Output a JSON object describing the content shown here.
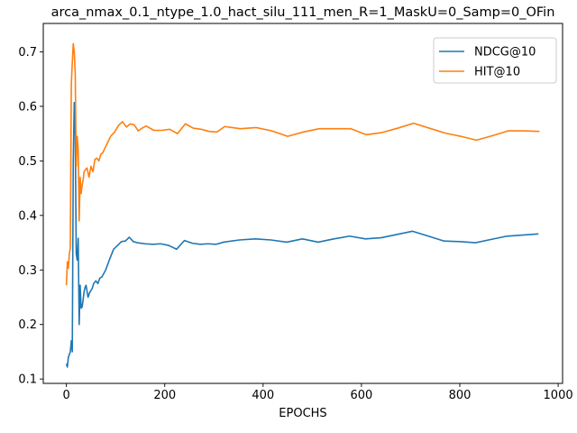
{
  "chart_data": {
    "type": "line",
    "title": "arca_nmax_0.1_ntype_1.0_hact_silu_111_men_R=1_MaskU=0_Samp=0_OFin",
    "xlabel": "EPOCHS",
    "ylabel": "",
    "xlim": [
      -47,
      1009
    ],
    "ylim": [
      0.092,
      0.752
    ],
    "xticks": [
      0,
      200,
      400,
      600,
      800,
      1000
    ],
    "yticks": [
      0.1,
      0.2,
      0.3,
      0.4,
      0.5,
      0.6,
      0.7
    ],
    "grid": false,
    "legend_position": "upper right",
    "series": [
      {
        "name": "NDCG@10",
        "color": "#1f77b4",
        "points": [
          [
            0,
            0.128
          ],
          [
            2,
            0.122
          ],
          [
            4,
            0.14
          ],
          [
            6,
            0.145
          ],
          [
            8,
            0.15
          ],
          [
            10,
            0.17
          ],
          [
            12,
            0.15
          ],
          [
            14,
            0.5
          ],
          [
            16,
            0.607
          ],
          [
            18,
            0.55
          ],
          [
            20,
            0.33
          ],
          [
            22,
            0.318
          ],
          [
            24,
            0.358
          ],
          [
            26,
            0.2
          ],
          [
            28,
            0.272
          ],
          [
            30,
            0.23
          ],
          [
            32,
            0.232
          ],
          [
            34,
            0.245
          ],
          [
            36,
            0.26
          ],
          [
            38,
            0.268
          ],
          [
            40,
            0.272
          ],
          [
            44,
            0.25
          ],
          [
            48,
            0.26
          ],
          [
            52,
            0.265
          ],
          [
            56,
            0.276
          ],
          [
            60,
            0.28
          ],
          [
            64,
            0.275
          ],
          [
            68,
            0.285
          ],
          [
            72,
            0.287
          ],
          [
            80,
            0.3
          ],
          [
            88,
            0.32
          ],
          [
            96,
            0.338
          ],
          [
            104,
            0.345
          ],
          [
            112,
            0.352
          ],
          [
            120,
            0.353
          ],
          [
            128,
            0.36
          ],
          [
            136,
            0.352
          ],
          [
            144,
            0.35
          ],
          [
            160,
            0.348
          ],
          [
            176,
            0.347
          ],
          [
            192,
            0.348
          ],
          [
            208,
            0.345
          ],
          [
            224,
            0.338
          ],
          [
            240,
            0.354
          ],
          [
            256,
            0.349
          ],
          [
            272,
            0.347
          ],
          [
            288,
            0.348
          ],
          [
            304,
            0.347
          ],
          [
            320,
            0.351
          ],
          [
            352,
            0.355
          ],
          [
            384,
            0.357
          ],
          [
            416,
            0.355
          ],
          [
            448,
            0.351
          ],
          [
            480,
            0.357
          ],
          [
            512,
            0.351
          ],
          [
            544,
            0.357
          ],
          [
            576,
            0.362
          ],
          [
            608,
            0.357
          ],
          [
            640,
            0.359
          ],
          [
            672,
            0.365
          ],
          [
            704,
            0.371
          ],
          [
            736,
            0.362
          ],
          [
            768,
            0.353
          ],
          [
            800,
            0.352
          ],
          [
            832,
            0.35
          ],
          [
            864,
            0.356
          ],
          [
            896,
            0.362
          ],
          [
            928,
            0.364
          ],
          [
            960,
            0.366
          ]
        ]
      },
      {
        "name": "HIT@10",
        "color": "#ff7f0e",
        "points": [
          [
            0,
            0.272
          ],
          [
            2,
            0.315
          ],
          [
            4,
            0.303
          ],
          [
            6,
            0.33
          ],
          [
            8,
            0.34
          ],
          [
            10,
            0.64
          ],
          [
            12,
            0.68
          ],
          [
            14,
            0.715
          ],
          [
            16,
            0.7
          ],
          [
            18,
            0.66
          ],
          [
            20,
            0.49
          ],
          [
            22,
            0.545
          ],
          [
            24,
            0.52
          ],
          [
            26,
            0.39
          ],
          [
            28,
            0.47
          ],
          [
            30,
            0.44
          ],
          [
            32,
            0.455
          ],
          [
            34,
            0.465
          ],
          [
            36,
            0.48
          ],
          [
            38,
            0.483
          ],
          [
            42,
            0.487
          ],
          [
            46,
            0.47
          ],
          [
            50,
            0.49
          ],
          [
            54,
            0.48
          ],
          [
            58,
            0.503
          ],
          [
            62,
            0.505
          ],
          [
            66,
            0.5
          ],
          [
            70,
            0.512
          ],
          [
            74,
            0.515
          ],
          [
            82,
            0.53
          ],
          [
            90,
            0.545
          ],
          [
            98,
            0.553
          ],
          [
            106,
            0.565
          ],
          [
            114,
            0.572
          ],
          [
            122,
            0.562
          ],
          [
            130,
            0.568
          ],
          [
            138,
            0.566
          ],
          [
            146,
            0.555
          ],
          [
            154,
            0.56
          ],
          [
            162,
            0.564
          ],
          [
            178,
            0.556
          ],
          [
            194,
            0.556
          ],
          [
            210,
            0.558
          ],
          [
            226,
            0.55
          ],
          [
            242,
            0.568
          ],
          [
            258,
            0.56
          ],
          [
            274,
            0.558
          ],
          [
            290,
            0.554
          ],
          [
            306,
            0.553
          ],
          [
            322,
            0.563
          ],
          [
            354,
            0.559
          ],
          [
            386,
            0.561
          ],
          [
            418,
            0.555
          ],
          [
            450,
            0.545
          ],
          [
            482,
            0.553
          ],
          [
            514,
            0.559
          ],
          [
            546,
            0.559
          ],
          [
            578,
            0.559
          ],
          [
            610,
            0.548
          ],
          [
            642,
            0.552
          ],
          [
            674,
            0.56
          ],
          [
            706,
            0.569
          ],
          [
            738,
            0.56
          ],
          [
            770,
            0.551
          ],
          [
            802,
            0.545
          ],
          [
            834,
            0.538
          ],
          [
            866,
            0.546
          ],
          [
            898,
            0.555
          ],
          [
            930,
            0.555
          ],
          [
            962,
            0.554
          ]
        ]
      }
    ]
  }
}
